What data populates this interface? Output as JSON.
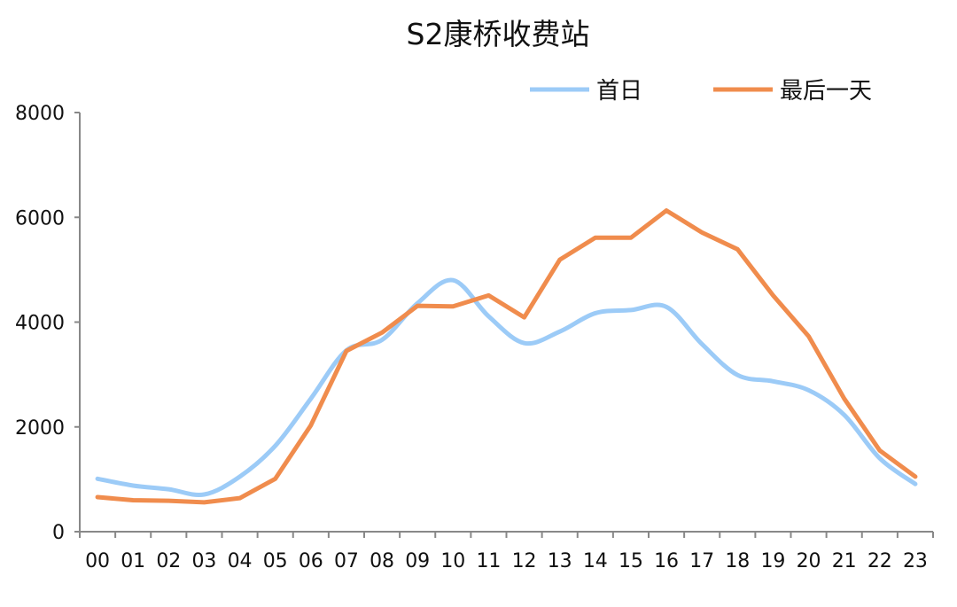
{
  "chart_data": {
    "type": "line",
    "title": "S2康桥收费站",
    "xlabel": "",
    "ylabel": "",
    "categories": [
      "00",
      "01",
      "02",
      "03",
      "04",
      "05",
      "06",
      "07",
      "08",
      "09",
      "10",
      "11",
      "12",
      "13",
      "14",
      "15",
      "16",
      "17",
      "18",
      "19",
      "20",
      "21",
      "22",
      "23"
    ],
    "ylim": [
      0,
      8000
    ],
    "yticks": [
      0,
      2000,
      4000,
      6000,
      8000
    ],
    "grid": false,
    "legend_position": "top-right",
    "series": [
      {
        "name": "首日",
        "color": "#9ccbf7",
        "smooth": true,
        "values": [
          1010,
          880,
          810,
          710,
          1050,
          1640,
          2540,
          3460,
          3660,
          4360,
          4800,
          4110,
          3600,
          3820,
          4170,
          4230,
          4290,
          3580,
          2990,
          2870,
          2700,
          2230,
          1400,
          910
        ]
      },
      {
        "name": "最后一天",
        "color": "#f08c4d",
        "smooth": false,
        "values": [
          660,
          600,
          590,
          560,
          640,
          1010,
          2030,
          3450,
          3800,
          4310,
          4300,
          4510,
          4090,
          5190,
          5610,
          5610,
          6130,
          5710,
          5390,
          4510,
          3730,
          2540,
          1550,
          1050
        ]
      }
    ]
  }
}
